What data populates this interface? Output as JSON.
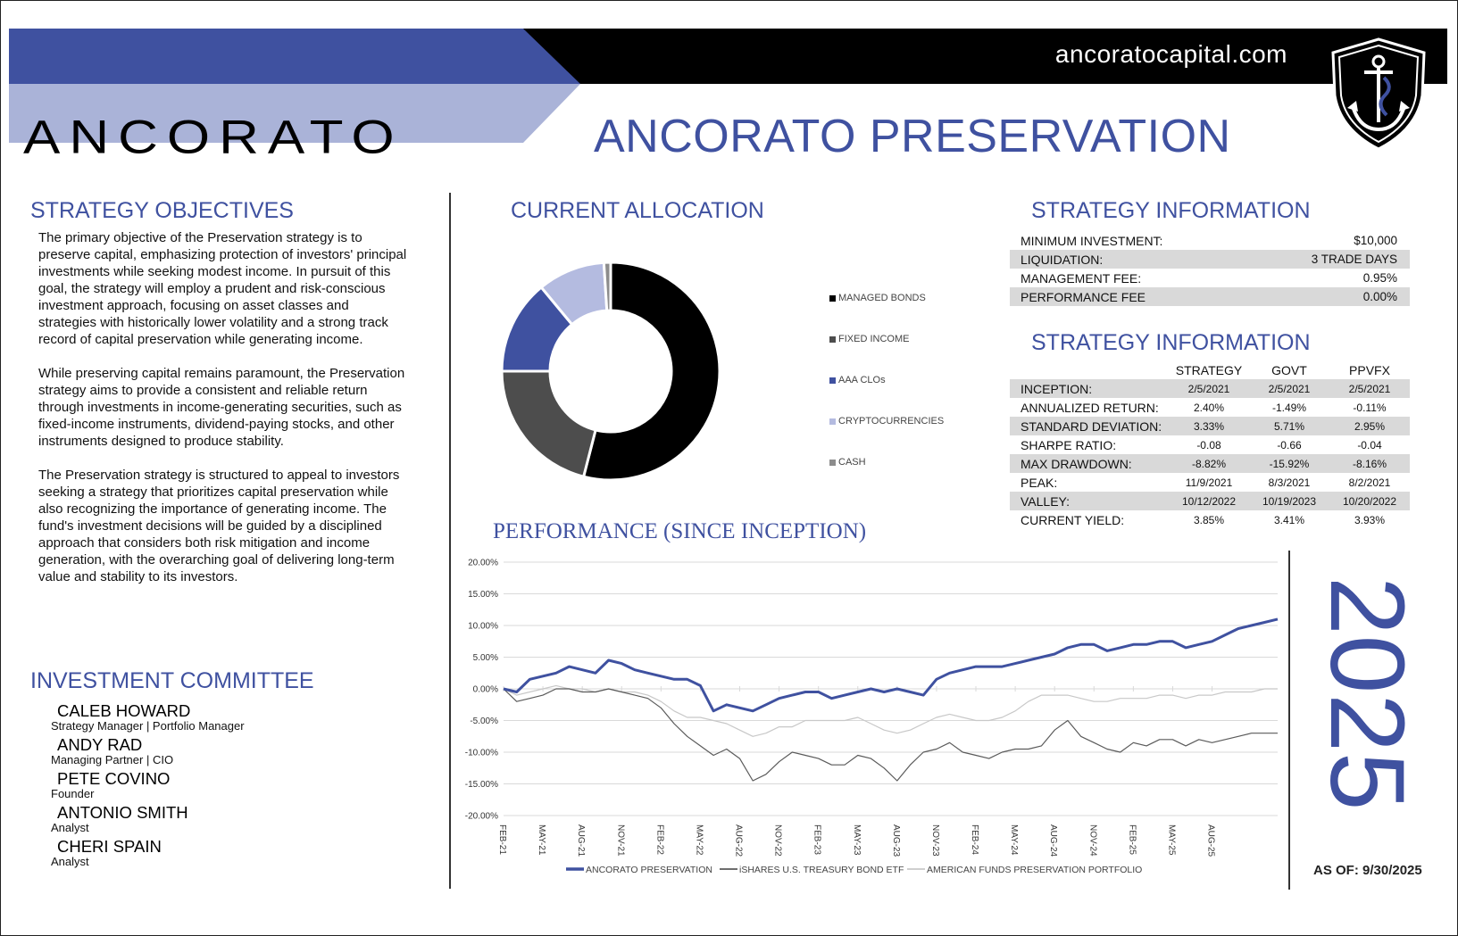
{
  "header": {
    "website": "ancoratocapital.com",
    "logo_text": "ANCORATO",
    "title": "ANCORATO PRESERVATION",
    "colors": {
      "brand_blue": "#3f51a0",
      "light_blue": "#aab3d8",
      "black": "#000000"
    },
    "icons": [
      "anchor-shield-icon"
    ]
  },
  "objectives": {
    "heading": "STRATEGY OBJECTIVES",
    "paragraphs": [
      "The primary objective of the Preservation strategy is to preserve capital, emphasizing protection of investors' principal investments while seeking modest income. In pursuit of this goal, the strategy will employ a prudent and risk-conscious investment approach, focusing on asset classes and strategies with historically lower volatility and a strong track record of capital preservation while generating income.",
      "While preserving capital remains paramount, the Preservation strategy aims to provide a consistent and reliable return through investments in income-generating securities, such as fixed-income instruments, dividend-paying stocks, and other instruments designed to produce stability.",
      "The Preservation strategy is structured to appeal to investors seeking a strategy that prioritizes capital preservation while also recognizing the importance of generating income. The fund's investment decisions will be guided by a disciplined approach that considers both risk mitigation and income generation, with the overarching goal of delivering long-term value and stability to its investors."
    ]
  },
  "committee": {
    "heading": "INVESTMENT COMMITTEE",
    "members": [
      {
        "name": "CALEB HOWARD",
        "role": "Strategy Manager | Portfolio Manager"
      },
      {
        "name": "ANDY RAD",
        "role": "Managing Partner | CIO"
      },
      {
        "name": "PETE COVINO",
        "role": "Founder"
      },
      {
        "name": "ANTONIO SMITH",
        "role": "Analyst"
      },
      {
        "name": "CHERI SPAIN",
        "role": "Analyst"
      }
    ]
  },
  "allocation": {
    "heading": "CURRENT ALLOCATION",
    "chart_data": {
      "type": "pie",
      "donut": true,
      "title": "",
      "categories": [
        "MANAGED BONDS",
        "FIXED INCOME",
        "AAA CLOs",
        "CRYPTOCURRENCIES",
        "CASH"
      ],
      "values": [
        54,
        21,
        14,
        10,
        1
      ],
      "colors": [
        "#000000",
        "#4d4d4d",
        "#3f51a0",
        "#b4bbe0",
        "#8c8c8c"
      ],
      "legend": "right"
    }
  },
  "strategy_info": {
    "heading": "STRATEGY INFORMATION",
    "rows": [
      {
        "label": "MINIMUM INVESTMENT:",
        "value": "$10,000"
      },
      {
        "label": "LIQUIDATION:",
        "value": "3 TRADE DAYS"
      },
      {
        "label": "MANAGEMENT FEE:",
        "value": "0.95%"
      },
      {
        "label": "PERFORMANCE FEE",
        "value": "0.00%"
      }
    ]
  },
  "strategy_stats": {
    "heading": "STRATEGY INFORMATION",
    "columns": [
      "STRATEGY",
      "GOVT",
      "PPVFX"
    ],
    "rows": [
      {
        "label": "INCEPTION:",
        "values": [
          "2/5/2021",
          "2/5/2021",
          "2/5/2021"
        ]
      },
      {
        "label": "ANNUALIZED RETURN:",
        "values": [
          "2.40%",
          "-1.49%",
          "-0.11%"
        ]
      },
      {
        "label": "STANDARD DEVIATION:",
        "values": [
          "3.33%",
          "5.71%",
          "2.95%"
        ]
      },
      {
        "label": "SHARPE RATIO:",
        "values": [
          "-0.08",
          "-0.66",
          "-0.04"
        ]
      },
      {
        "label": "MAX DRAWDOWN:",
        "values": [
          "-8.82%",
          "-15.92%",
          "-8.16%"
        ]
      },
      {
        "label": "PEAK:",
        "values": [
          "11/9/2021",
          "8/3/2021",
          "8/2/2021"
        ]
      },
      {
        "label": "VALLEY:",
        "values": [
          "10/12/2022",
          "10/19/2023",
          "10/20/2022"
        ]
      },
      {
        "label": "CURRENT YIELD:",
        "values": [
          "3.85%",
          "3.41%",
          "3.93%"
        ]
      }
    ]
  },
  "performance": {
    "heading": "PERFORMANCE (SINCE INCEPTION)",
    "chart_data": {
      "type": "line",
      "title": "",
      "xlabel": "",
      "ylabel": "",
      "ylim": [
        -20,
        20
      ],
      "yticks": [
        "20.00%",
        "15.00%",
        "10.00%",
        "5.00%",
        "0.00%",
        "-5.00%",
        "-10.00%",
        "-15.00%",
        "-20.00%"
      ],
      "yvalues": [
        20,
        15,
        10,
        5,
        0,
        -5,
        -10,
        -15,
        -20
      ],
      "xticks": [
        "FEB-21",
        "MAY-21",
        "AUG-21",
        "NOV-21",
        "FEB-22",
        "MAY-22",
        "AUG-22",
        "NOV-22",
        "FEB-23",
        "MAY-23",
        "AUG-23",
        "NOV-23",
        "FEB-24",
        "MAY-24",
        "AUG-24",
        "NOV-24",
        "FEB-25",
        "MAY-25",
        "AUG-25"
      ],
      "x_index_months": [
        0,
        1,
        2,
        3,
        4,
        5,
        6,
        7,
        8,
        9,
        10,
        11,
        12,
        13,
        14,
        15,
        16,
        17,
        18,
        19,
        20,
        21,
        22,
        23,
        24,
        25,
        26,
        27,
        28,
        29,
        30,
        31,
        32,
        33,
        34,
        35,
        36,
        37,
        38,
        39,
        40,
        41,
        42,
        43,
        44,
        45,
        46,
        47,
        48,
        49,
        50,
        51,
        52,
        53,
        54,
        55,
        56,
        57,
        58,
        59
      ],
      "legend": "bottom",
      "grid": true,
      "series": [
        {
          "name": "ANCORATO PRESERVATION",
          "color": "#3f51a0",
          "width": 3,
          "values": [
            0,
            -0.5,
            1.5,
            2,
            2.5,
            3.5,
            3,
            2.5,
            4.5,
            4,
            3,
            2.5,
            2,
            1.5,
            1.5,
            0.5,
            -3.5,
            -2.5,
            -3,
            -3.5,
            -2.5,
            -1.5,
            -1,
            -0.5,
            -0.5,
            -1.5,
            -1,
            -0.5,
            0,
            -0.5,
            0,
            -0.5,
            -1,
            1.5,
            2.5,
            3,
            3.5,
            3.5,
            3.5,
            4,
            4.5,
            5,
            5.5,
            6.5,
            7,
            7,
            6,
            6.5,
            7,
            7,
            7.5,
            7.5,
            6.5,
            7,
            7.5,
            8.5,
            9.5,
            10,
            10.5,
            11
          ]
        },
        {
          "name": "iSHARES U.S. TREASURY BOND ETF",
          "color": "#5a5a5a",
          "width": 1.2,
          "values": [
            0,
            -2,
            -1.5,
            -1,
            0,
            0,
            -0.5,
            -0.5,
            0,
            -0.5,
            -1,
            -1.5,
            -3,
            -5.5,
            -7.5,
            -9,
            -10.5,
            -9.5,
            -11,
            -14.5,
            -13.5,
            -11.5,
            -10,
            -10.5,
            -11,
            -12,
            -12,
            -10.5,
            -11,
            -12.5,
            -14.5,
            -12,
            -10,
            -9.5,
            -8.5,
            -10,
            -10.5,
            -11,
            -10,
            -9.5,
            -9.5,
            -9,
            -6.5,
            -5,
            -7.5,
            -8.5,
            -9.5,
            -10,
            -8.5,
            -9,
            -8,
            -8,
            -9,
            -8,
            -8.5,
            -8,
            -7.5,
            -7,
            -7,
            -7
          ]
        },
        {
          "name": "AMERICAN FUNDS PRESERVATION PORTFOLIO",
          "color": "#c8c8c8",
          "width": 1.2,
          "values": [
            0,
            -1,
            -0.5,
            0,
            0.5,
            0,
            0,
            -0.5,
            0,
            -0.5,
            -0.5,
            -1,
            -2,
            -3.5,
            -4.5,
            -4.5,
            -5,
            -5.5,
            -6.5,
            -7.5,
            -7,
            -6,
            -6,
            -5,
            -5,
            -5,
            -5,
            -4.5,
            -5.5,
            -6.5,
            -7,
            -6.5,
            -5.5,
            -4.5,
            -4,
            -4.5,
            -5,
            -5,
            -4.5,
            -3.5,
            -2,
            -1,
            -1,
            -1,
            -1.5,
            -2,
            -2,
            -1.5,
            -1.5,
            -1.5,
            -1,
            -1,
            -1.5,
            -1,
            -1,
            -0.5,
            -0.5,
            -0.5,
            0,
            0
          ]
        }
      ]
    }
  },
  "year": "2025",
  "as_of": "AS OF: 9/30/2025"
}
